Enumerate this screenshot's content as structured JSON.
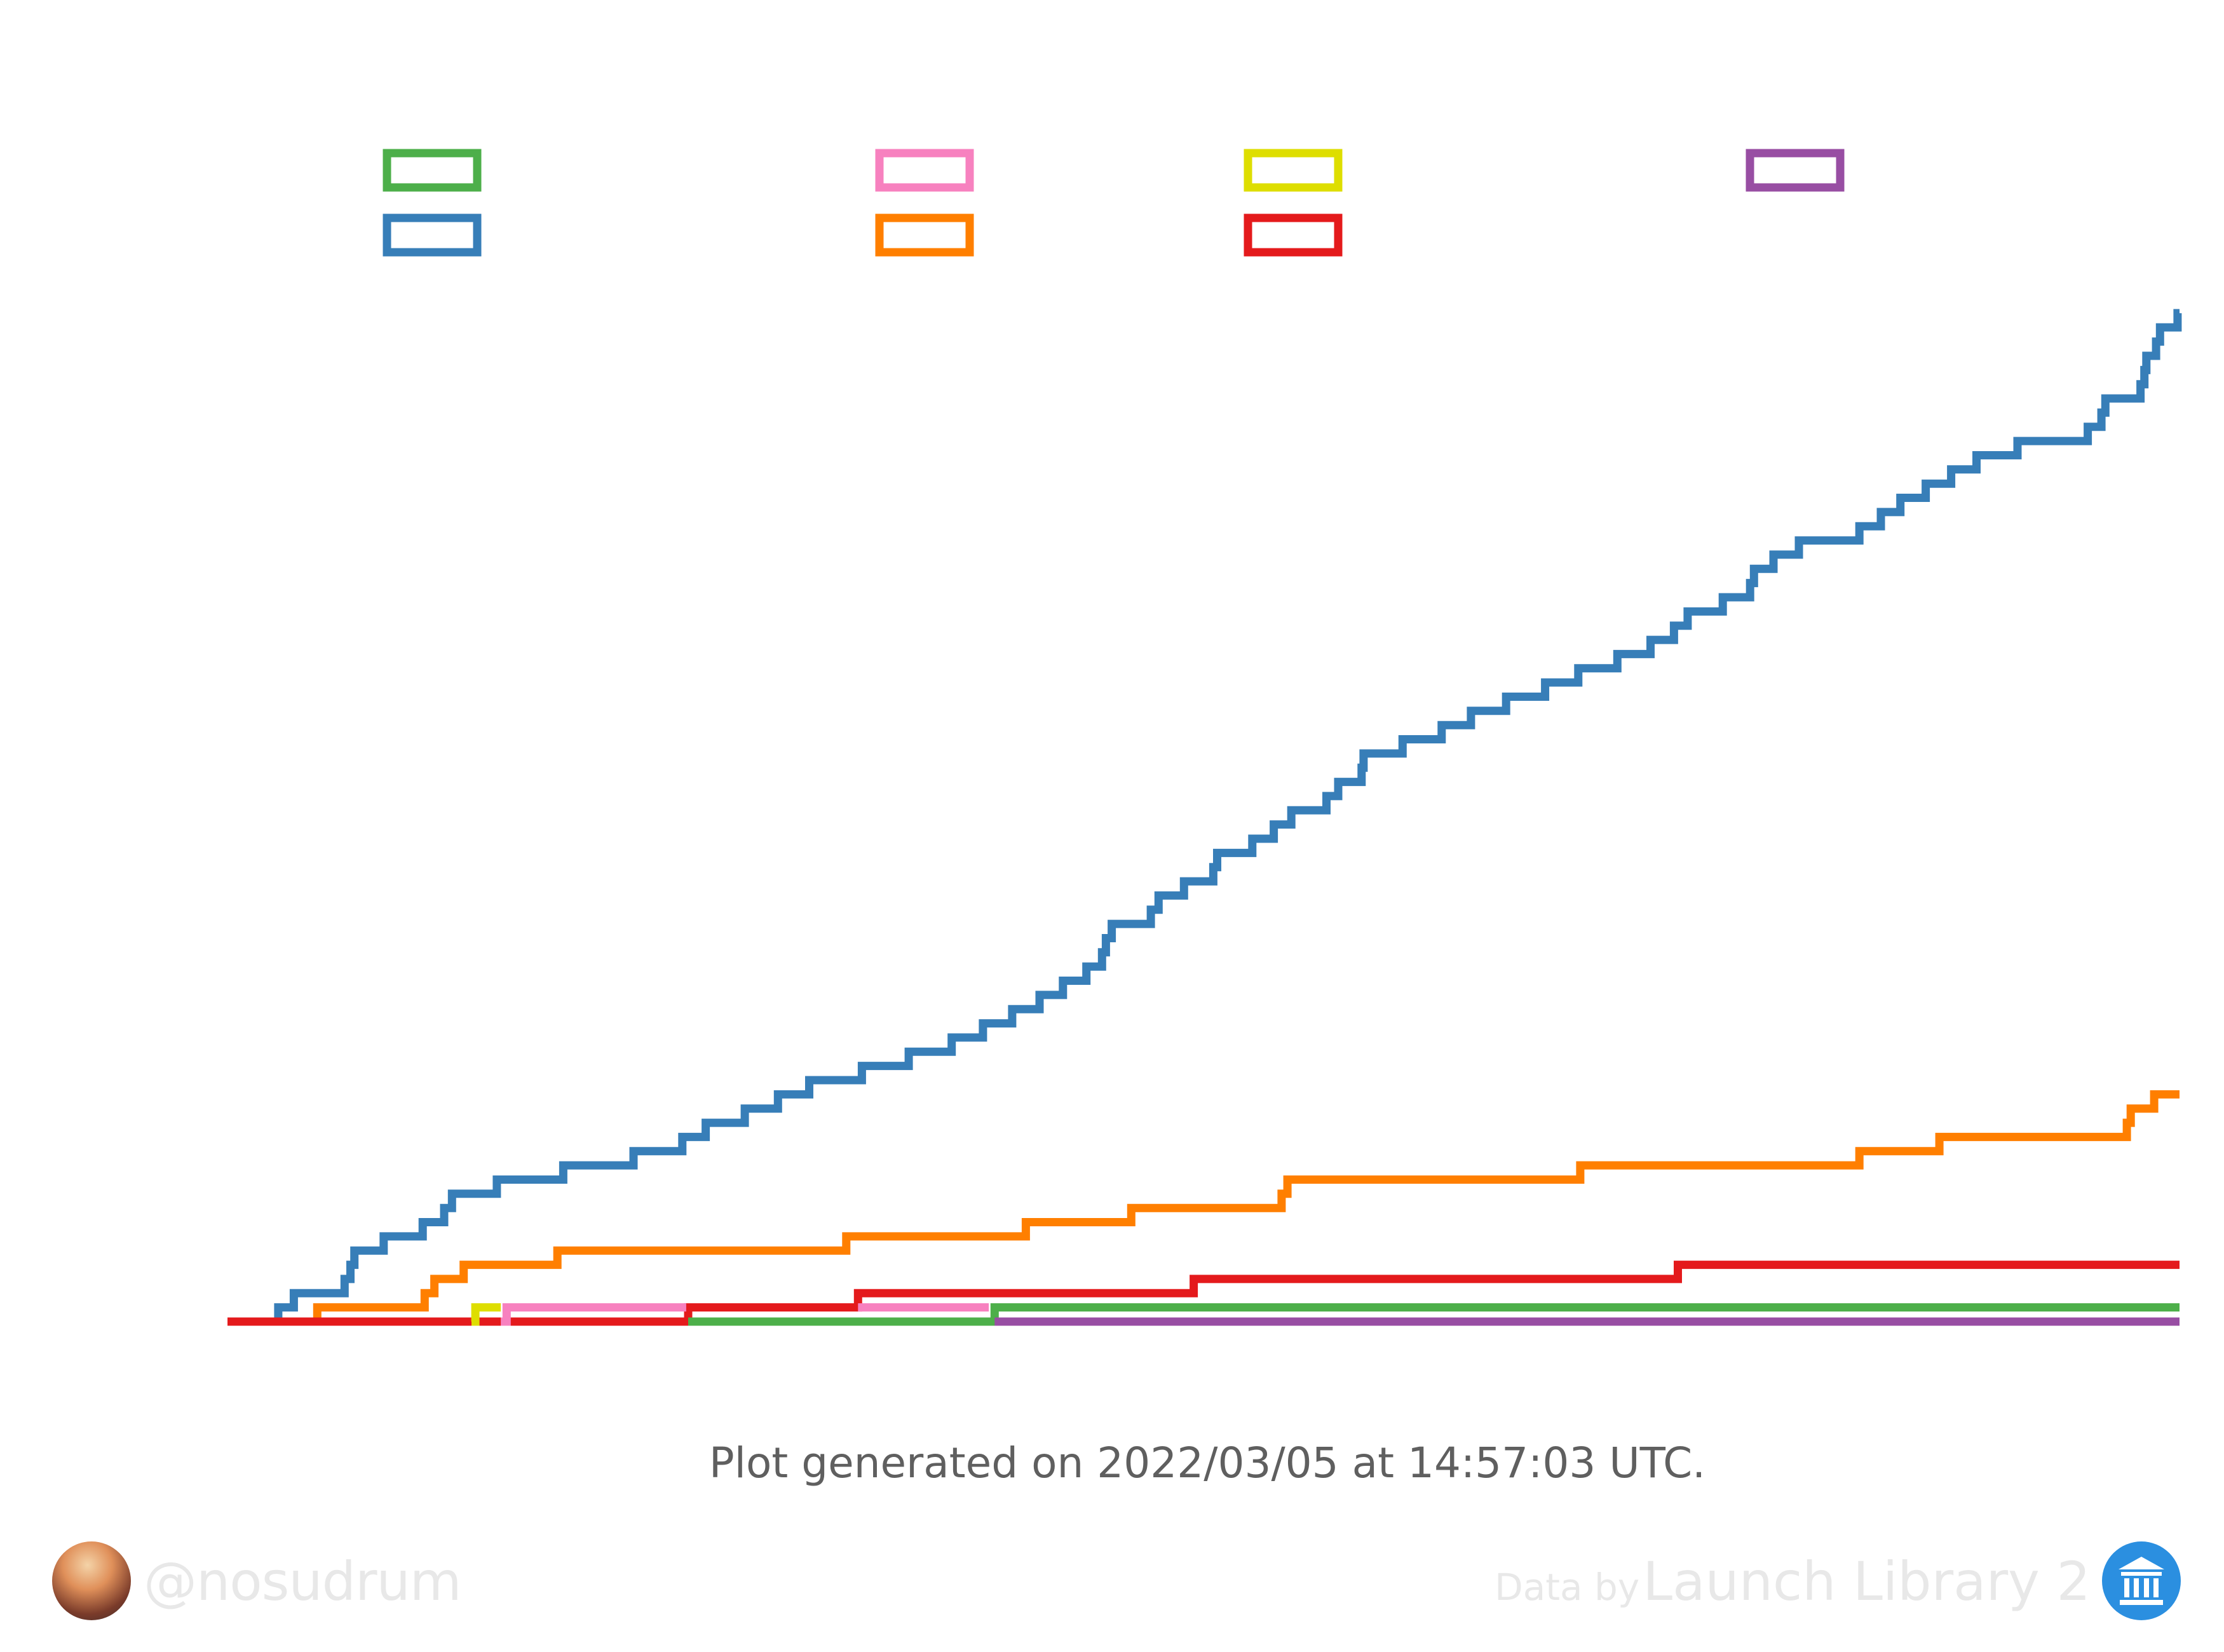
{
  "footer": {
    "generated": "Plot generated on 2022/03/05 at 14:57:03 UTC.",
    "handle": "@nosudrum",
    "credit_prefix": "Data by",
    "credit_source": "Launch Library 2"
  },
  "colors": {
    "green": "#4daf4a",
    "blue": "#377eb8",
    "pink": "#f781bf",
    "orange": "#ff7f00",
    "yellow": "#dede00",
    "red": "#e41a1c",
    "purple": "#984ea3"
  },
  "chart_data": {
    "type": "line",
    "step": true,
    "title": "",
    "xlabel": "",
    "ylabel": "",
    "xlim": [
      0,
      1
    ],
    "ylim": [
      0,
      85
    ],
    "grid": false,
    "legend": "top",
    "series": [
      {
        "color": "#377eb8",
        "points": [
          [
            0.02,
            0
          ],
          [
            0.026,
            1
          ],
          [
            0.034,
            2
          ],
          [
            0.06,
            3
          ],
          [
            0.063,
            4
          ],
          [
            0.065,
            5
          ],
          [
            0.08,
            6
          ],
          [
            0.1,
            7
          ],
          [
            0.111,
            8
          ],
          [
            0.115,
            9
          ],
          [
            0.138,
            10
          ],
          [
            0.172,
            11
          ],
          [
            0.208,
            12
          ],
          [
            0.233,
            13
          ],
          [
            0.245,
            14
          ],
          [
            0.265,
            15
          ],
          [
            0.282,
            16
          ],
          [
            0.298,
            17
          ],
          [
            0.325,
            18
          ],
          [
            0.349,
            19
          ],
          [
            0.371,
            20
          ],
          [
            0.387,
            21
          ],
          [
            0.402,
            22
          ],
          [
            0.416,
            23
          ],
          [
            0.428,
            24
          ],
          [
            0.44,
            25
          ],
          [
            0.448,
            26
          ],
          [
            0.45,
            27
          ],
          [
            0.453,
            28
          ],
          [
            0.473,
            29
          ],
          [
            0.477,
            30
          ],
          [
            0.49,
            31
          ],
          [
            0.505,
            32
          ],
          [
            0.507,
            33
          ],
          [
            0.525,
            34
          ],
          [
            0.536,
            35
          ],
          [
            0.545,
            36
          ],
          [
            0.563,
            37
          ],
          [
            0.569,
            38
          ],
          [
            0.581,
            39
          ],
          [
            0.582,
            40
          ],
          [
            0.602,
            41
          ],
          [
            0.622,
            42
          ],
          [
            0.637,
            43
          ],
          [
            0.655,
            44
          ],
          [
            0.675,
            45
          ],
          [
            0.692,
            46
          ],
          [
            0.712,
            47
          ],
          [
            0.729,
            48
          ],
          [
            0.741,
            49
          ],
          [
            0.748,
            50
          ],
          [
            0.766,
            51
          ],
          [
            0.78,
            52
          ],
          [
            0.782,
            53
          ],
          [
            0.792,
            54
          ],
          [
            0.805,
            55
          ],
          [
            0.836,
            56
          ],
          [
            0.847,
            57
          ],
          [
            0.857,
            58
          ],
          [
            0.87,
            59
          ],
          [
            0.883,
            60
          ],
          [
            0.896,
            61
          ],
          [
            0.917,
            62
          ],
          [
            0.953,
            63
          ],
          [
            0.96,
            64
          ],
          [
            0.962,
            65
          ],
          [
            0.98,
            66
          ],
          [
            0.982,
            67
          ],
          [
            0.983,
            68
          ],
          [
            0.988,
            69
          ],
          [
            0.99,
            70
          ],
          [
            0.999,
            71
          ],
          [
            1.0,
            71
          ]
        ]
      },
      {
        "color": "#ff7f00",
        "points": [
          [
            0.045,
            0
          ],
          [
            0.046,
            1
          ],
          [
            0.101,
            2
          ],
          [
            0.106,
            3
          ],
          [
            0.121,
            4
          ],
          [
            0.169,
            5
          ],
          [
            0.317,
            6
          ],
          [
            0.409,
            7
          ],
          [
            0.463,
            8
          ],
          [
            0.54,
            9
          ],
          [
            0.543,
            10
          ],
          [
            0.693,
            11
          ],
          [
            0.836,
            12
          ],
          [
            0.877,
            13
          ],
          [
            0.973,
            14
          ],
          [
            0.975,
            15
          ],
          [
            0.987,
            16
          ],
          [
            1.0,
            16
          ]
        ]
      },
      {
        "color": "#e41a1c",
        "points": [
          [
            0.0,
            0
          ],
          [
            0.236,
            1
          ],
          [
            0.323,
            2
          ],
          [
            0.495,
            3
          ],
          [
            0.743,
            4
          ],
          [
            1.0,
            4
          ]
        ]
      },
      {
        "color": "#4daf4a",
        "points": [
          [
            0.236,
            0
          ],
          [
            0.393,
            1
          ],
          [
            1.0,
            1
          ]
        ]
      },
      {
        "color": "#f781bf",
        "points": [
          [
            0.14,
            0
          ],
          [
            0.143,
            1
          ],
          [
            0.235,
            1
          ]
        ]
      },
      {
        "color": "#f781bf",
        "points": [
          [
            0.323,
            1
          ],
          [
            0.39,
            1
          ]
        ]
      },
      {
        "color": "#dede00",
        "points": [
          [
            0.125,
            0
          ],
          [
            0.127,
            1
          ],
          [
            0.14,
            1
          ]
        ]
      },
      {
        "color": "#984ea3",
        "points": [
          [
            0.393,
            0
          ],
          [
            1.0,
            0
          ]
        ]
      }
    ],
    "legend_items": [
      {
        "color": "#4daf4a"
      },
      {
        "color": "#f781bf"
      },
      {
        "color": "#dede00"
      },
      {
        "color": "#984ea3"
      },
      {
        "color": "#377eb8"
      },
      {
        "color": "#ff7f00"
      },
      {
        "color": "#e41a1c"
      }
    ]
  }
}
